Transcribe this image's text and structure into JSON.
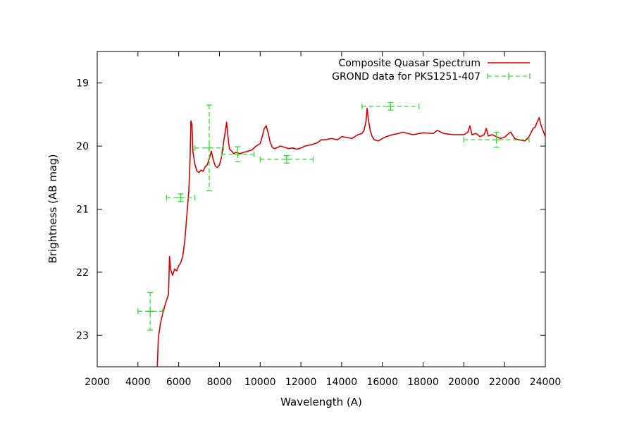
{
  "chart_data": {
    "type": "line",
    "title": "",
    "xlabel": "Wavelength (A)",
    "ylabel": "Brightness (AB mag)",
    "xlim": [
      2000,
      24000
    ],
    "ylim": [
      23.5,
      18.5
    ],
    "y_inverted": true,
    "x_ticks": [
      2000,
      4000,
      6000,
      8000,
      10000,
      12000,
      14000,
      16000,
      18000,
      20000,
      22000,
      24000
    ],
    "x_tick_labels": [
      "2000",
      "4000",
      "6000",
      "8000",
      "10000",
      "12000",
      "14000",
      "16000",
      "18000",
      "20000",
      "22000",
      "24000"
    ],
    "y_ticks": [
      19,
      20,
      21,
      22,
      23
    ],
    "y_tick_labels": [
      "19",
      "20",
      "21",
      "22",
      "23"
    ],
    "grid": false,
    "legend_position": "top-right",
    "series": [
      {
        "name": "Composite Quasar Spectrum",
        "color": "#d40000",
        "style": "line",
        "x": [
          4950,
          5000,
          5100,
          5200,
          5300,
          5400,
          5500,
          5550,
          5600,
          5700,
          5800,
          5900,
          6000,
          6100,
          6200,
          6300,
          6400,
          6500,
          6560,
          6600,
          6650,
          6700,
          6800,
          6900,
          7000,
          7100,
          7200,
          7300,
          7400,
          7500,
          7600,
          7700,
          7800,
          7900,
          8000,
          8100,
          8200,
          8300,
          8350,
          8400,
          8450,
          8500,
          8600,
          8700,
          8800,
          9000,
          9200,
          9400,
          9600,
          9800,
          10000,
          10100,
          10200,
          10300,
          10400,
          10500,
          10600,
          10700,
          10800,
          11000,
          11200,
          11400,
          11600,
          11800,
          12000,
          12200,
          12500,
          12800,
          13000,
          13200,
          13500,
          13800,
          14000,
          14200,
          14500,
          14800,
          15000,
          15100,
          15200,
          15250,
          15300,
          15400,
          15500,
          15600,
          15800,
          16000,
          16200,
          16500,
          16800,
          17000,
          17500,
          18000,
          18500,
          18700,
          19000,
          19500,
          20000,
          20200,
          20300,
          20400,
          20600,
          20800,
          21000,
          21100,
          21200,
          21400,
          21600,
          21800,
          22000,
          22200,
          22300,
          22500,
          22700,
          23000,
          23200,
          23400,
          23500,
          23600,
          23700,
          23800,
          24000
        ],
        "y": [
          23.5,
          23.05,
          22.82,
          22.68,
          22.55,
          22.45,
          22.35,
          21.75,
          21.95,
          22.05,
          21.95,
          21.98,
          21.9,
          21.85,
          21.75,
          21.5,
          21.1,
          20.7,
          20.2,
          19.6,
          19.65,
          20.1,
          20.3,
          20.4,
          20.42,
          20.38,
          20.4,
          20.33,
          20.3,
          20.2,
          20.08,
          20.22,
          20.32,
          20.34,
          20.3,
          20.18,
          19.95,
          19.75,
          19.62,
          19.78,
          19.95,
          20.05,
          20.08,
          20.12,
          20.1,
          20.12,
          20.1,
          20.08,
          20.06,
          20.0,
          19.96,
          19.85,
          19.72,
          19.68,
          19.8,
          19.95,
          20.02,
          20.04,
          20.03,
          20.0,
          20.02,
          20.04,
          20.03,
          20.05,
          20.03,
          20.0,
          19.98,
          19.95,
          19.9,
          19.9,
          19.88,
          19.9,
          19.85,
          19.86,
          19.88,
          19.82,
          19.8,
          19.75,
          19.6,
          19.4,
          19.55,
          19.75,
          19.85,
          19.9,
          19.92,
          19.88,
          19.85,
          19.82,
          19.8,
          19.78,
          19.82,
          19.79,
          19.8,
          19.75,
          19.8,
          19.82,
          19.82,
          19.78,
          19.68,
          19.82,
          19.8,
          19.85,
          19.82,
          19.72,
          19.84,
          19.82,
          19.85,
          19.88,
          19.86,
          19.8,
          19.78,
          19.88,
          19.9,
          19.92,
          19.85,
          19.72,
          19.7,
          19.62,
          19.55,
          19.68,
          19.85
        ]
      },
      {
        "name": "GROND data for PKS1251-407",
        "color": "#33dd33",
        "style": "errorbars",
        "points": [
          {
            "x": 4600,
            "y": 22.62,
            "xerr": 600,
            "yerr": 0.3
          },
          {
            "x": 6100,
            "y": 20.82,
            "xerr": 700,
            "yerr": 0.06
          },
          {
            "x": 7500,
            "y": 20.03,
            "xerr": 700,
            "yerr": 0.68
          },
          {
            "x": 8900,
            "y": 20.13,
            "xerr": 800,
            "yerr": 0.12
          },
          {
            "x": 11300,
            "y": 20.21,
            "xerr": 1300,
            "yerr": 0.06
          },
          {
            "x": 16400,
            "y": 19.37,
            "xerr": 1400,
            "yerr": 0.06
          },
          {
            "x": 21600,
            "y": 19.9,
            "xerr": 1600,
            "yerr": 0.12
          }
        ]
      }
    ]
  }
}
